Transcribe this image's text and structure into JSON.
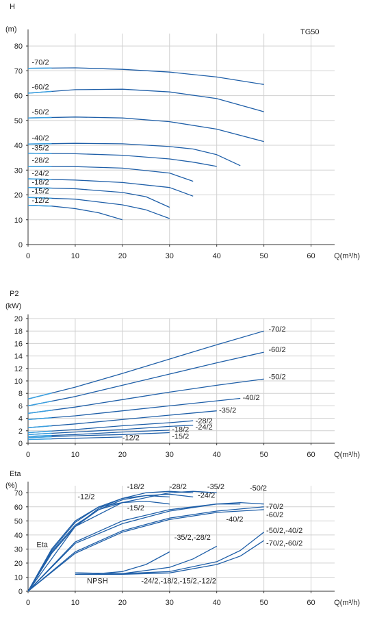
{
  "brand": "TG50",
  "colors": {
    "curve": "#1f5fa8",
    "curve_light": "#3aa0e0",
    "grid": "#d0d0d0",
    "axis": "#333333"
  },
  "chart_data": [
    {
      "id": "head",
      "type": "line",
      "ylabel": "H",
      "yunit": "(m)",
      "xlabel": "Q(m³/h)",
      "xlim": [
        0,
        65
      ],
      "ylim": [
        0,
        85
      ],
      "xticks": [
        0,
        10,
        20,
        30,
        40,
        50,
        60
      ],
      "yticks": [
        0,
        10,
        20,
        30,
        40,
        50,
        60,
        70,
        80
      ],
      "series": [
        {
          "name": "-70/2",
          "x": [
            0,
            10,
            20,
            30,
            40,
            50
          ],
          "y": [
            71,
            71.2,
            70.6,
            69.5,
            67.5,
            64.5
          ]
        },
        {
          "name": "-60/2",
          "x": [
            0,
            10,
            20,
            30,
            40,
            50
          ],
          "y": [
            61,
            62.4,
            62.6,
            61.5,
            58.8,
            53.5
          ]
        },
        {
          "name": "-50/2",
          "x": [
            0,
            10,
            20,
            30,
            40,
            50
          ],
          "y": [
            51,
            51.4,
            51,
            49.5,
            46.5,
            41.5
          ]
        },
        {
          "name": "-40/2",
          "x": [
            0,
            10,
            20,
            30,
            35,
            40,
            45
          ],
          "y": [
            40.5,
            40.8,
            40.6,
            39.5,
            38.5,
            36.2,
            31.8
          ]
        },
        {
          "name": "-35/2",
          "x": [
            0,
            10,
            20,
            30,
            35,
            40
          ],
          "y": [
            36.8,
            36.6,
            36,
            34.5,
            33.2,
            31.5
          ]
        },
        {
          "name": "-28/2",
          "x": [
            0,
            10,
            20,
            30,
            35
          ],
          "y": [
            31.5,
            31.4,
            30.8,
            28.8,
            25.5
          ]
        },
        {
          "name": "-24/2",
          "x": [
            0,
            10,
            20,
            30,
            35
          ],
          "y": [
            26.5,
            26,
            25,
            23,
            19.5
          ]
        },
        {
          "name": "-18/2",
          "x": [
            0,
            10,
            20,
            25,
            30
          ],
          "y": [
            23,
            22.5,
            21,
            19.3,
            15
          ]
        },
        {
          "name": "-15/2",
          "x": [
            0,
            10,
            20,
            25,
            30
          ],
          "y": [
            19,
            18.3,
            16,
            14,
            10.5
          ]
        },
        {
          "name": "-12/2",
          "x": [
            0,
            5,
            10,
            15,
            20
          ],
          "y": [
            15.8,
            15.5,
            14.5,
            12.8,
            10
          ]
        }
      ]
    },
    {
      "id": "power",
      "type": "line",
      "ylabel": "P2",
      "yunit": "(kW)",
      "xlabel": "Q(m³/h)",
      "xlim": [
        0,
        65
      ],
      "ylim": [
        0,
        20
      ],
      "xticks": [
        0,
        10,
        20,
        30,
        40,
        50,
        60
      ],
      "yticks": [
        0,
        2,
        4,
        6,
        8,
        10,
        12,
        14,
        16,
        18,
        20
      ],
      "series": [
        {
          "name": "-70/2",
          "x": [
            0,
            10,
            20,
            30,
            40,
            50
          ],
          "y": [
            7.1,
            9,
            11.2,
            13.5,
            15.8,
            18
          ]
        },
        {
          "name": "-60/2",
          "x": [
            0,
            10,
            20,
            30,
            40,
            50
          ],
          "y": [
            6,
            7.5,
            9.3,
            11.1,
            12.9,
            14.6
          ]
        },
        {
          "name": "-50/2",
          "x": [
            0,
            10,
            20,
            30,
            40,
            50
          ],
          "y": [
            4.8,
            5.8,
            7,
            8.2,
            9.3,
            10.3
          ]
        },
        {
          "name": "-40/2",
          "x": [
            0,
            10,
            20,
            30,
            40,
            45
          ],
          "y": [
            3.8,
            4.4,
            5.2,
            6,
            6.8,
            7.2
          ]
        },
        {
          "name": "-35/2",
          "x": [
            0,
            10,
            20,
            30,
            40
          ],
          "y": [
            2.5,
            3.1,
            3.8,
            4.5,
            5.2
          ]
        },
        {
          "name": "-28/2",
          "x": [
            0,
            10,
            20,
            30,
            35
          ],
          "y": [
            1.7,
            2.2,
            2.8,
            3.3,
            3.6
          ]
        },
        {
          "name": "-24/2",
          "x": [
            0,
            10,
            20,
            30,
            35
          ],
          "y": [
            1.4,
            1.8,
            2.2,
            2.7,
            2.9
          ]
        },
        {
          "name": "-18/2",
          "x": [
            0,
            10,
            20,
            30
          ],
          "y": [
            1.1,
            1.4,
            1.8,
            2.1
          ]
        },
        {
          "name": "-15/2",
          "x": [
            0,
            10,
            20,
            30
          ],
          "y": [
            0.9,
            1.2,
            1.4,
            1.7
          ]
        },
        {
          "name": "-12/2",
          "x": [
            0,
            10,
            20
          ],
          "y": [
            0.6,
            0.8,
            1
          ]
        }
      ]
    },
    {
      "id": "efficiency",
      "type": "line",
      "ylabel": "Eta",
      "yunit": "(%)",
      "xlabel": "Q(m³/h)",
      "xlim": [
        0,
        65
      ],
      "ylim": [
        0,
        75
      ],
      "xticks": [
        0,
        10,
        20,
        30,
        40,
        50,
        60
      ],
      "yticks": [
        0,
        10,
        20,
        30,
        40,
        50,
        60,
        70
      ],
      "annotations": [
        "Eta",
        "NPSH"
      ],
      "series": [
        {
          "name": "-12/2",
          "x": [
            0,
            5,
            10,
            15,
            20
          ],
          "y": [
            0,
            30,
            50,
            60,
            63
          ]
        },
        {
          "name": "-15/2",
          "x": [
            0,
            5,
            10,
            15,
            20,
            25,
            30
          ],
          "y": [
            0,
            28,
            47,
            58,
            63,
            64,
            62
          ]
        },
        {
          "name": "-18/2",
          "x": [
            0,
            5,
            10,
            15,
            20,
            25,
            30
          ],
          "y": [
            0,
            29,
            49,
            60,
            66,
            68,
            67
          ]
        },
        {
          "name": "-24/2",
          "x": [
            0,
            5,
            10,
            15,
            20,
            25,
            30,
            35
          ],
          "y": [
            0,
            27,
            46,
            58,
            65,
            68,
            69,
            67
          ]
        },
        {
          "name": "-28/2",
          "x": [
            0,
            5,
            10,
            15,
            20,
            25,
            30,
            35
          ],
          "y": [
            0,
            27,
            46,
            59,
            66,
            70,
            71,
            70
          ]
        },
        {
          "name": "-35/2",
          "x": [
            0,
            10,
            20,
            30,
            35,
            40
          ],
          "y": [
            0,
            46,
            63,
            70,
            71,
            70
          ]
        },
        {
          "name": "-40/2",
          "x": [
            0,
            10,
            20,
            30,
            40,
            45
          ],
          "y": [
            0,
            35,
            50,
            58,
            62,
            62
          ]
        },
        {
          "name": "-50/2",
          "x": [
            0,
            10,
            20,
            30,
            40,
            45,
            50
          ],
          "y": [
            0,
            34,
            48,
            57,
            62,
            63,
            62
          ]
        },
        {
          "name": "-60/2",
          "x": [
            0,
            10,
            20,
            30,
            40,
            50
          ],
          "y": [
            0,
            27,
            42,
            51,
            56,
            58
          ]
        },
        {
          "name": "-70/2",
          "x": [
            0,
            10,
            20,
            30,
            40,
            50
          ],
          "y": [
            0,
            28,
            43,
            52,
            57,
            60
          ]
        },
        {
          "name": "NPSH -24/2,-18/2,-15/2,-12/2",
          "x": [
            10,
            15,
            20,
            25,
            30
          ],
          "y": [
            13,
            12.5,
            14,
            19,
            28
          ]
        },
        {
          "name": "NPSH -35/2,-28/2",
          "x": [
            10,
            20,
            30,
            35,
            40
          ],
          "y": [
            13,
            12.5,
            17,
            23,
            32
          ]
        },
        {
          "name": "NPSH -50/2,-40/2",
          "x": [
            10,
            20,
            30,
            40,
            45,
            50
          ],
          "y": [
            13,
            12.5,
            14,
            21,
            29,
            42
          ]
        },
        {
          "name": "NPSH -70/2,-60/2",
          "x": [
            10,
            20,
            30,
            40,
            45,
            50
          ],
          "y": [
            12,
            12,
            13,
            19,
            25,
            36
          ]
        }
      ]
    }
  ],
  "labels": {
    "head": [
      {
        "text": "-70/2",
        "x": 0.8,
        "y": 72.5
      },
      {
        "text": "-60/2",
        "x": 0.8,
        "y": 62.5
      },
      {
        "text": "-50/2",
        "x": 0.8,
        "y": 52.5
      },
      {
        "text": "-40/2",
        "x": 0.8,
        "y": 42.0
      },
      {
        "text": "-35/2",
        "x": 0.8,
        "y": 38.0
      },
      {
        "text": "-28/2",
        "x": 0.8,
        "y": 33.0
      },
      {
        "text": "-24/2",
        "x": 0.8,
        "y": 27.8
      },
      {
        "text": "-18/2",
        "x": 0.8,
        "y": 24.2
      },
      {
        "text": "-15/2",
        "x": 0.8,
        "y": 20.5
      },
      {
        "text": "-12/2",
        "x": 0.8,
        "y": 16.8
      }
    ],
    "power": [
      {
        "text": "-70/2",
        "x": 51,
        "y": 17.9
      },
      {
        "text": "-60/2",
        "x": 51,
        "y": 14.6
      },
      {
        "text": "-50/2",
        "x": 51,
        "y": 10.3
      },
      {
        "text": "-40/2",
        "x": 45.5,
        "y": 6.9
      },
      {
        "text": "-35/2",
        "x": 40.5,
        "y": 4.9
      },
      {
        "text": "-28/2",
        "x": 35.5,
        "y": 3.2
      },
      {
        "text": "-24/2",
        "x": 35.5,
        "y": 2.2
      },
      {
        "text": "-18/2",
        "x": 30.5,
        "y": 1.8
      },
      {
        "text": "-15/2",
        "x": 30.5,
        "y": 0.7
      },
      {
        "text": "-12/2",
        "x": 20,
        "y": 0.5
      }
    ],
    "efficiency": [
      {
        "text": "-18/2",
        "x": 21,
        "y": 72.5
      },
      {
        "text": "-28/2",
        "x": 30,
        "y": 72.5
      },
      {
        "text": "-35/2",
        "x": 38,
        "y": 72.5
      },
      {
        "text": "-50/2",
        "x": 47,
        "y": 71.5
      },
      {
        "text": "-12/2",
        "x": 10.5,
        "y": 65.5
      },
      {
        "text": "-24/2",
        "x": 36,
        "y": 66.5
      },
      {
        "text": "-15/2",
        "x": 21,
        "y": 57.5
      },
      {
        "text": "-70/2",
        "x": 50.5,
        "y": 58.5
      },
      {
        "text": "-60/2",
        "x": 50.5,
        "y": 52.5
      },
      {
        "text": "-40/2",
        "x": 42,
        "y": 49.5
      },
      {
        "text": "-50/2,-40/2",
        "x": 50.5,
        "y": 41.5
      },
      {
        "text": "-35/2,-28/2",
        "x": 31,
        "y": 36.5
      },
      {
        "text": "-70/2,-60/2",
        "x": 50.5,
        "y": 32.5
      },
      {
        "text": "Eta",
        "x": 1.8,
        "y": 31.5
      },
      {
        "text": "NPSH",
        "x": 12.5,
        "y": 5.5
      },
      {
        "text": "-24/2,-18/2,-15/2,-12/2",
        "x": 24,
        "y": 5.5
      }
    ]
  }
}
